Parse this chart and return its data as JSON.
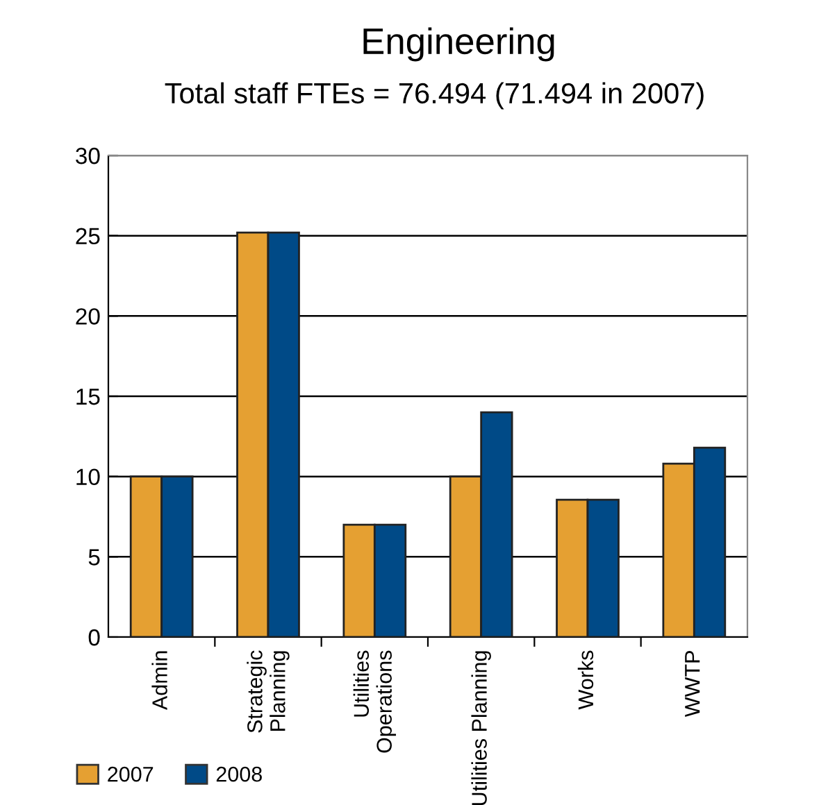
{
  "chart_data": {
    "type": "bar",
    "title": "Engineering",
    "subtitle": "Total staff FTEs = 76.494 (71.494 in 2007)",
    "categories": [
      "Admin",
      "Strategic\nPlanning",
      "Utilities\nOperations",
      "Utilities Planning",
      "Works",
      "WWTP"
    ],
    "series": [
      {
        "name": "2007",
        "color": "#e5a032",
        "values": [
          10,
          25.2,
          7,
          10,
          8.55,
          10.8
        ]
      },
      {
        "name": "2008",
        "color": "#004a87",
        "values": [
          10,
          25.2,
          7,
          14,
          8.55,
          11.8
        ]
      }
    ],
    "ylim": [
      0,
      30
    ],
    "yticks": [
      0,
      5,
      10,
      15,
      20,
      25,
      30
    ],
    "grid": "y",
    "legend": "bottom left"
  }
}
